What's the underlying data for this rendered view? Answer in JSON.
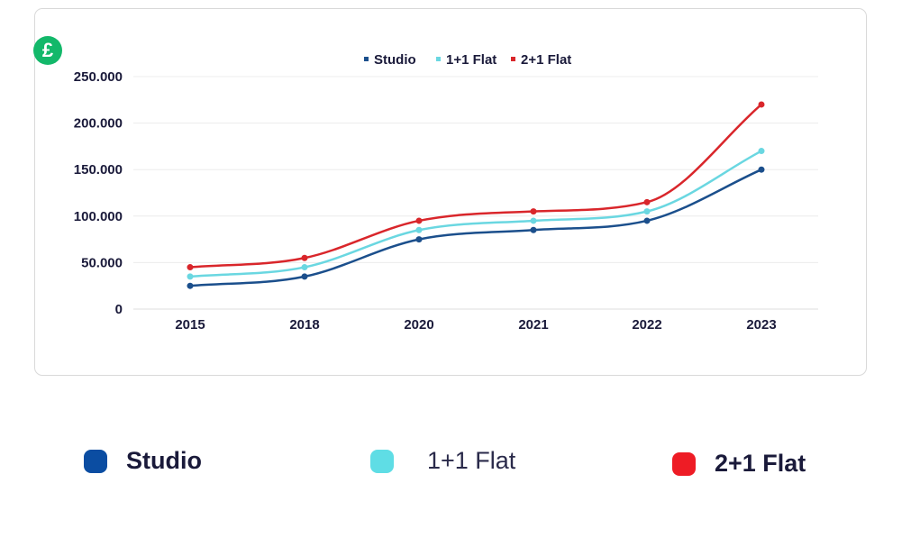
{
  "currency_symbol": "£",
  "legend_items": [
    {
      "label": "Studio",
      "color": "#0b4da2"
    },
    {
      "label": "1+1 Flat",
      "color": "#5fdde5"
    },
    {
      "label": "2+1 Flat",
      "color": "#ee1c25"
    }
  ],
  "chart_data": {
    "type": "line",
    "title": "",
    "xlabel": "",
    "ylabel": "",
    "categories": [
      "2015",
      "2018",
      "2020",
      "2021",
      "2022",
      "2023"
    ],
    "ylim": [
      0,
      250000
    ],
    "yticks": [
      "0",
      "50.000",
      "100.000",
      "150.000",
      "200.000",
      "250.000"
    ],
    "ytick_values": [
      0,
      50000,
      100000,
      150000,
      200000,
      250000
    ],
    "grid": true,
    "legend_position": "top-center",
    "series": [
      {
        "name": "Studio",
        "color": "#1b4f8c",
        "values": [
          25000,
          35000,
          75000,
          85000,
          95000,
          150000
        ]
      },
      {
        "name": "1+1 Flat",
        "color": "#6ad7e1",
        "values": [
          35000,
          45000,
          85000,
          95000,
          105000,
          170000
        ]
      },
      {
        "name": "2+1 Flat",
        "color": "#d9262b",
        "values": [
          45000,
          55000,
          95000,
          105000,
          115000,
          220000
        ]
      }
    ]
  }
}
